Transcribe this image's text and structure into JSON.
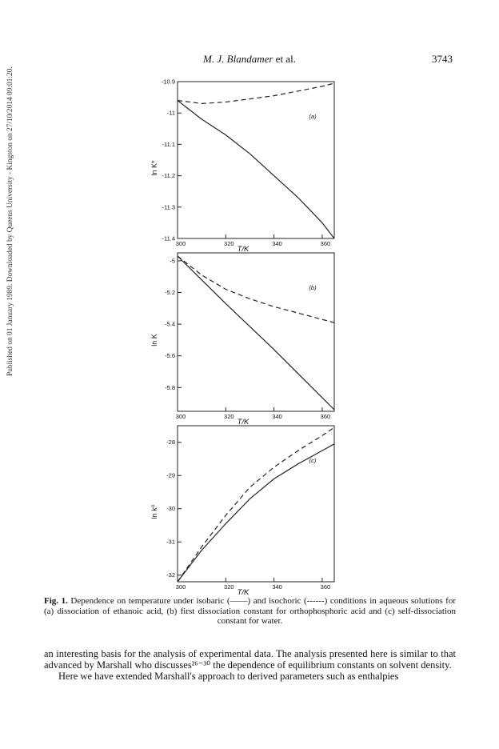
{
  "side_note": "Published on 01 January 1989. Downloaded by Queens University - Kingston on 27/10/2014 09:01:20.",
  "running_head": {
    "authors": "M. J. Blandamer",
    "etal": " et al."
  },
  "page_number": "3743",
  "chart_data": [
    {
      "panel": "a",
      "panel_label": "(a)",
      "type": "line",
      "ylabel": "ln K*",
      "xlabel": "T/K",
      "xlim": [
        300,
        365
      ],
      "ylim": [
        -11.4,
        -10.9
      ],
      "x_ticks": [
        300,
        320,
        340,
        360
      ],
      "y_ticks": [
        -10.9,
        -11,
        -11.1,
        -11.2,
        -11.3,
        -11.4
      ],
      "x_tick_labels": [
        "300",
        "320",
        "340",
        "360"
      ],
      "y_tick_labels": [
        "-10.9",
        "-11",
        "-11.1",
        "-11.2",
        "-11.3",
        "-11.4"
      ],
      "series": [
        {
          "style": "solid",
          "points": [
            [
              300,
              -10.96
            ],
            [
              310,
              -11.02
            ],
            [
              320,
              -11.07
            ],
            [
              330,
              -11.13
            ],
            [
              340,
              -11.2
            ],
            [
              350,
              -11.27
            ],
            [
              360,
              -11.35
            ],
            [
              365,
              -11.4
            ]
          ]
        },
        {
          "style": "dashed",
          "points": [
            [
              300,
              -10.96
            ],
            [
              310,
              -10.97
            ],
            [
              320,
              -10.965
            ],
            [
              330,
              -10.955
            ],
            [
              340,
              -10.945
            ],
            [
              350,
              -10.93
            ],
            [
              360,
              -10.915
            ],
            [
              365,
              -10.905
            ]
          ]
        }
      ]
    },
    {
      "panel": "b",
      "panel_label": "(b)",
      "type": "line",
      "ylabel": "ln K",
      "xlabel": "T/K",
      "xlim": [
        300,
        365
      ],
      "ylim": [
        -5.95,
        -4.95
      ],
      "x_ticks": [
        300,
        320,
        340,
        360
      ],
      "y_ticks": [
        -5,
        -5.2,
        -5.4,
        -5.6,
        -5.8
      ],
      "x_tick_labels": [
        "300",
        "320",
        "340",
        "360"
      ],
      "y_tick_labels": [
        "-5",
        "-5.2",
        "-5.4",
        "-5.6",
        "-5.8"
      ],
      "series": [
        {
          "style": "solid",
          "points": [
            [
              300,
              -4.97
            ],
            [
              320,
              -5.27
            ],
            [
              340,
              -5.56
            ],
            [
              365,
              -5.94
            ]
          ]
        },
        {
          "style": "dashed",
          "points": [
            [
              300,
              -4.97
            ],
            [
              310,
              -5.09
            ],
            [
              320,
              -5.18
            ],
            [
              330,
              -5.24
            ],
            [
              340,
              -5.29
            ],
            [
              350,
              -5.33
            ],
            [
              360,
              -5.37
            ],
            [
              365,
              -5.39
            ]
          ]
        }
      ]
    },
    {
      "panel": "c",
      "panel_label": "(c)",
      "type": "line",
      "ylabel": "ln k⁰",
      "xlabel": "T/K",
      "xlim": [
        300,
        365
      ],
      "ylim": [
        -32.2,
        -27.5
      ],
      "x_ticks": [
        300,
        320,
        340,
        360
      ],
      "y_ticks": [
        -28,
        -29,
        -30,
        -31,
        -32
      ],
      "x_tick_labels": [
        "300",
        "320",
        "340",
        "360"
      ],
      "y_tick_labels": [
        "-28",
        "-29",
        "-30",
        "-31",
        "-32"
      ],
      "series": [
        {
          "style": "solid",
          "points": [
            [
              300,
              -32.2
            ],
            [
              310,
              -31.25
            ],
            [
              320,
              -30.45
            ],
            [
              330,
              -29.7
            ],
            [
              340,
              -29.1
            ],
            [
              350,
              -28.65
            ],
            [
              360,
              -28.25
            ],
            [
              365,
              -28.05
            ]
          ]
        },
        {
          "style": "dashed",
          "points": [
            [
              300,
              -32.2
            ],
            [
              310,
              -31.15
            ],
            [
              320,
              -30.2
            ],
            [
              330,
              -29.35
            ],
            [
              340,
              -28.75
            ],
            [
              350,
              -28.25
            ],
            [
              360,
              -27.8
            ],
            [
              365,
              -27.55
            ]
          ]
        }
      ]
    }
  ],
  "caption": {
    "label": "Fig. 1.",
    "text": " Dependence on temperature under isobaric (——) and isochoric (------) conditions in aqueous solutions for (a) dissociation of ethanoic acid, (b) first dissociation constant for orthophosphoric acid and (c) self-dissociation constant for water."
  },
  "body": {
    "para1": "an interesting basis for the analysis of experimental data. The analysis presented here is similar to that advanced by Marshall who discusses²⁶⁻³⁰ the dependence of equilibrium constants on solvent density.",
    "para2": "Here we have extended Marshall's approach to derived parameters such as enthalpies"
  }
}
